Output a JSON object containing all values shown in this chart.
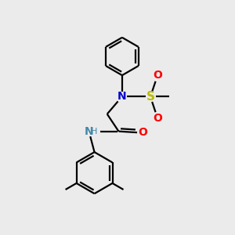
{
  "background_color": "#ebebeb",
  "bond_color": "#000000",
  "N_color": "#0000CC",
  "O_color": "#FF0000",
  "S_color": "#BBBB00",
  "NH_color": "#4488AA",
  "lw": 1.6,
  "figsize": [
    3.0,
    3.0
  ],
  "dpi": 100,
  "xlim": [
    0,
    10
  ],
  "ylim": [
    0,
    10
  ]
}
